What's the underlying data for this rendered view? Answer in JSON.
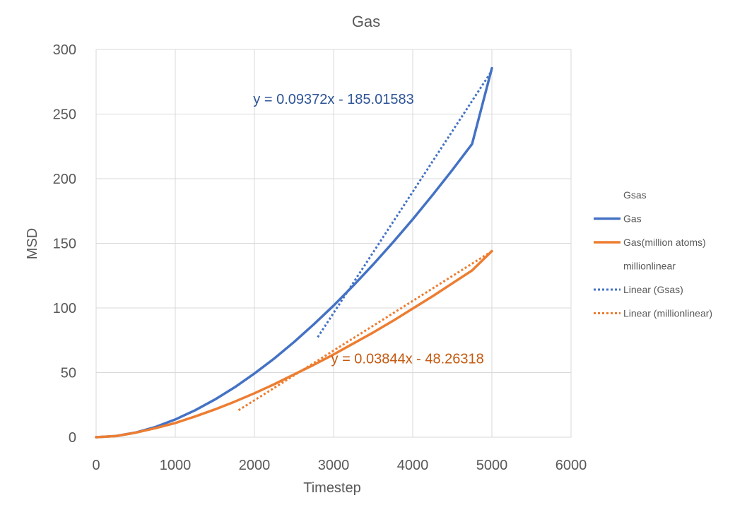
{
  "chart_data": {
    "type": "line",
    "title": "Gas",
    "xlabel": "Timestep",
    "ylabel": "MSD",
    "xlim": [
      0,
      6000
    ],
    "ylim": [
      0,
      300
    ],
    "xticks": [
      0,
      1000,
      2000,
      3000,
      4000,
      5000,
      6000
    ],
    "yticks": [
      0,
      50,
      100,
      150,
      200,
      250,
      300
    ],
    "grid": true,
    "legend_position": "right",
    "series": [
      {
        "name": "Gas",
        "style": "solid",
        "color": "#4472C4",
        "x": [
          0,
          250,
          500,
          750,
          1000,
          1250,
          1500,
          1750,
          2000,
          2250,
          2500,
          2750,
          3000,
          3250,
          3500,
          3750,
          4000,
          4250,
          4500,
          4750,
          5000
        ],
        "y": [
          0,
          0.9,
          3.6,
          7.9,
          13.7,
          20.8,
          29.1,
          38.6,
          49.3,
          60.9,
          73.6,
          87.3,
          101.8,
          117.3,
          133.6,
          150.7,
          168.6,
          187.3,
          206.7,
          226.9,
          285.5
        ]
      },
      {
        "name": "Gas(million atoms)",
        "style": "solid",
        "color": "#ED7D31",
        "x": [
          0,
          250,
          500,
          750,
          1000,
          1250,
          1500,
          1750,
          2000,
          2250,
          2500,
          2750,
          3000,
          3250,
          3500,
          3750,
          4000,
          4250,
          4500,
          4750,
          5000
        ],
        "y": [
          0,
          0.9,
          3.5,
          7.0,
          11.0,
          16.0,
          21.5,
          27.5,
          34.0,
          41.0,
          48.5,
          56.0,
          64.0,
          72.5,
          81.0,
          90.0,
          99.5,
          109.0,
          119.0,
          129.0,
          144.0
        ]
      },
      {
        "name": "Linear (Gsas)",
        "style": "dotted",
        "color": "#4472C4",
        "x": [
          2800,
          5000
        ],
        "y": [
          77.4,
          283.6
        ]
      },
      {
        "name": "Linear (millionlinear)",
        "style": "dotted",
        "color": "#ED7D31",
        "x": [
          1800,
          5000
        ],
        "y": [
          20.9,
          143.9
        ]
      }
    ],
    "legend_entries": [
      {
        "label": "Gsas",
        "marker": "none",
        "color": "#4472C4"
      },
      {
        "label": "Gas",
        "marker": "solid",
        "color": "#4472C4"
      },
      {
        "label": "Gas(million atoms)",
        "marker": "solid",
        "color": "#ED7D31"
      },
      {
        "label": "millionlinear",
        "marker": "none",
        "color": "#ED7D31"
      },
      {
        "label": "Linear (Gsas)",
        "marker": "dotted",
        "color": "#4472C4"
      },
      {
        "label": "Linear (millionlinear)",
        "marker": "dotted",
        "color": "#ED7D31"
      }
    ],
    "annotations": [
      {
        "text": "y = 0.09372x - 185.01583",
        "color": "#2F5597",
        "anchor_x": 3000,
        "anchor_y": 258
      },
      {
        "text": "y = 0.03844x - 48.26318",
        "color": "#C55A11",
        "anchor_x": 4900,
        "anchor_y": 57
      }
    ]
  }
}
